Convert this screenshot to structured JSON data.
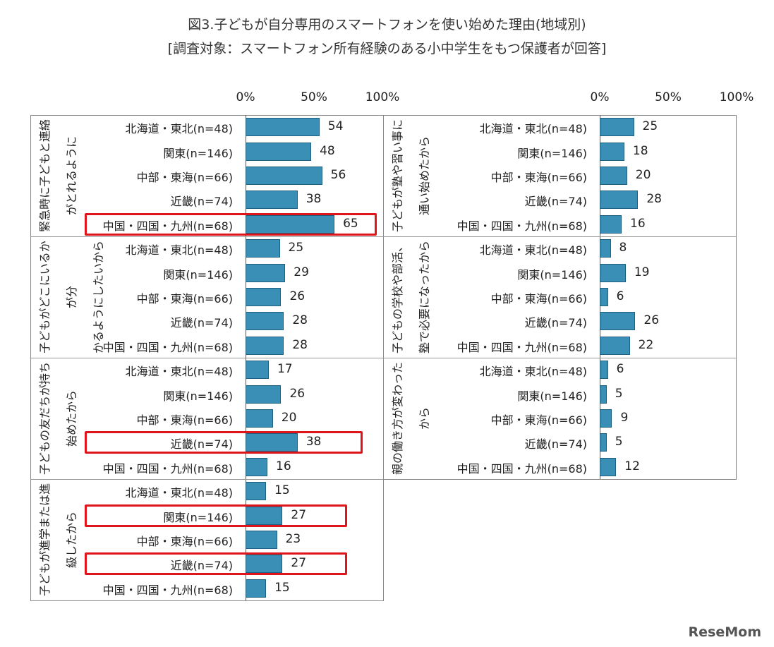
{
  "title": "図3.子どもが自分専用のスマートフォンを使い始めた理由(地域別)",
  "subtitle": "[調査対象：スマートフォン所有経験のある小中学生をもつ保護者が回答]",
  "logo": "ReseMom",
  "chart_data": {
    "type": "bar",
    "orientation": "horizontal",
    "xlim": [
      0,
      100
    ],
    "ticks": [
      "0%",
      "50%",
      "100%"
    ],
    "regions": [
      "北海道・東北(n=48)",
      "関東(n=146)",
      "中部・東海(n=66)",
      "近畿(n=74)",
      "中国・四国・九州(n=68)"
    ],
    "bar_color": "#3a8fb7",
    "highlight_color": "#e0151b",
    "panels": [
      {
        "groups": [
          {
            "label": [
              "緊急時に子どもと連絡",
              "がとれるように"
            ],
            "values": [
              54,
              48,
              56,
              38,
              65
            ],
            "highlight": [
              4
            ]
          },
          {
            "label": [
              "子どもがどこにいるかが分",
              "かるようにしたいから"
            ],
            "values": [
              25,
              29,
              26,
              28,
              28
            ],
            "highlight": []
          },
          {
            "label": [
              "子どもの友だちが持ち",
              "始めたから"
            ],
            "values": [
              17,
              26,
              20,
              38,
              16
            ],
            "highlight": [
              3
            ]
          },
          {
            "label": [
              "子どもが進学または進",
              "級したから"
            ],
            "values": [
              15,
              27,
              23,
              27,
              15
            ],
            "highlight": [
              1,
              3
            ]
          }
        ]
      },
      {
        "groups": [
          {
            "label": [
              "子どもが塾や習い事に",
              "通い始めたから"
            ],
            "values": [
              25,
              18,
              20,
              28,
              16
            ],
            "highlight": []
          },
          {
            "label": [
              "子どもの学校や部活、",
              "塾で必要になったから"
            ],
            "values": [
              8,
              19,
              6,
              26,
              22
            ],
            "highlight": []
          },
          {
            "label": [
              "親の働き方が変わった",
              "から"
            ],
            "values": [
              6,
              5,
              9,
              5,
              12
            ],
            "highlight": []
          }
        ]
      }
    ]
  }
}
